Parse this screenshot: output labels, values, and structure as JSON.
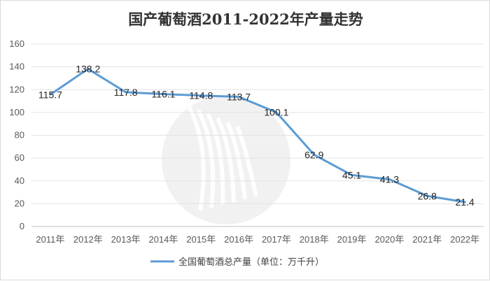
{
  "chart_data": {
    "type": "line",
    "title": "国产葡萄酒2011-2022年产量走势",
    "categories": [
      "2011年",
      "2012年",
      "2013年",
      "2014年",
      "2015年",
      "2016年",
      "2017年",
      "2018年",
      "2019年",
      "2020年",
      "2021年",
      "2022年"
    ],
    "series": [
      {
        "name": "全国葡萄酒总产量（单位：万千升）",
        "values": [
          115.7,
          138.2,
          117.8,
          116.1,
          114.8,
          113.7,
          100.1,
          62.9,
          45.1,
          41.3,
          26.8,
          21.4
        ],
        "color": "#5b9bd5"
      }
    ],
    "yticks": [
      0,
      20,
      40,
      60,
      80,
      100,
      120,
      140,
      160
    ],
    "ylim": [
      0,
      160
    ],
    "xlabel": "",
    "ylabel": "",
    "grid": true,
    "legend": "bottom-center",
    "data_labels": true
  }
}
